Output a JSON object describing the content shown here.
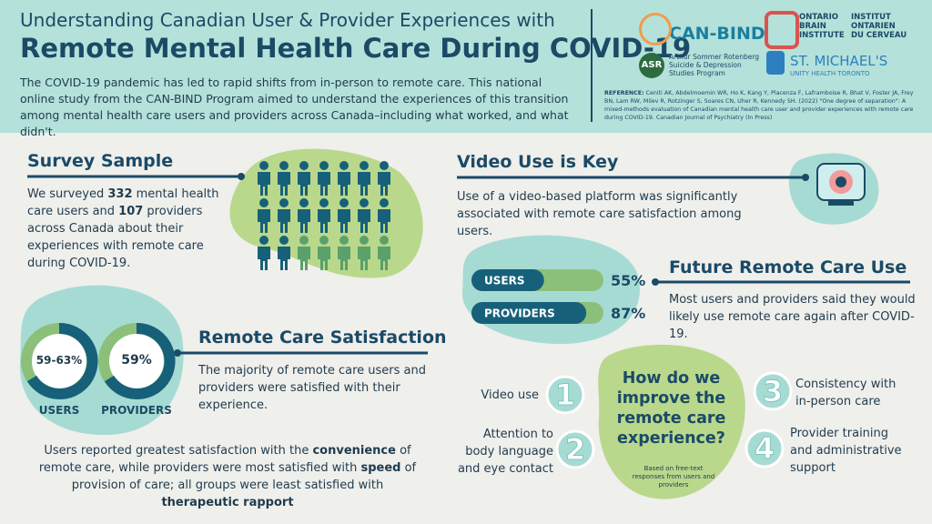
{
  "header": {
    "title_line1": "Understanding Canadian User & Provider Experiences with",
    "title_line2": "Remote Mental Health Care During COVID-19",
    "intro": "The COVID-19 pandemic has led to rapid shifts from in-person to remote care. This national online study from the CAN-BIND Program aimed to understand the experiences of this transition among mental health care users and providers across Canada–including what worked, and what didn't.",
    "reference_label": "REFERENCE:",
    "reference": "Ceniti AK, Abdelmoemin WR, Ho K, Kang Y, Placenza F, Laframboise R, Bhat V, Foster JA, Frey BN, Lam RW, Milev R, Rotzinger S, Soares CN, Uher R, Kennedy SH. (2022) \"One degree of separation\": A mixed-methods evaluation of Canadian mental health care user and provider experiences with remote care during COVID-19. Canadian Journal of Psychiatry (In Press)"
  },
  "logos": {
    "can_bind": "CAN-BIND",
    "obi_en": [
      "ONTARIO",
      "BRAIN",
      "INSTITUTE"
    ],
    "obi_fr": [
      "INSTITUT",
      "ONTARIEN",
      "DU CERVEAU"
    ],
    "asr": "ASR",
    "asr_text": [
      "Arthur Sommer Rotenberg",
      "Suicide & Depression",
      "Studies Program"
    ],
    "smh": "ST. MICHAEL'S",
    "smh_sub": "UNITY HEALTH TORONTO"
  },
  "survey": {
    "heading": "Survey Sample",
    "text": [
      "We surveyed ",
      "332",
      " mental health care users and ",
      "107",
      " providers across Canada about their experiences with remote care during COVID-19."
    ]
  },
  "satisfaction": {
    "heading": "Remote Care Satisfaction",
    "donuts": [
      {
        "label": "59-63%",
        "name": "USERS"
      },
      {
        "label": "59%",
        "name": "PROVIDERS"
      }
    ],
    "text": "The majority of remote care users and providers were satisfied with their experience."
  },
  "bottom_note": [
    "Users reported greatest satisfaction with the ",
    "convenience",
    " of remote care, while providers were most satisfied with ",
    "speed",
    " of provision of care; all groups were least satisfied with ",
    "therapeutic rapport"
  ],
  "video": {
    "heading": "Video Use is Key",
    "text": "Use of a video-based platform was significantly associated with remote care satisfaction among users."
  },
  "future": {
    "heading": "Future Remote Care Use",
    "text": "Most users and providers said they would likely use remote care again after COVID-19.",
    "bars": [
      {
        "name": "USERS",
        "value": 55,
        "label": "55%"
      },
      {
        "name": "PROVIDERS",
        "value": 87,
        "label": "87%"
      }
    ]
  },
  "improve": {
    "heading": "How do we improve the remote care experience?",
    "note": "Based on free-text responses from users and providers",
    "items": [
      {
        "number": "1",
        "text": "Video use"
      },
      {
        "number": "2",
        "text": "Attention to body language and eye contact"
      },
      {
        "number": "3",
        "text": "Consistency with in-person care"
      },
      {
        "number": "4",
        "text": "Provider training and administrative support"
      }
    ]
  }
}
